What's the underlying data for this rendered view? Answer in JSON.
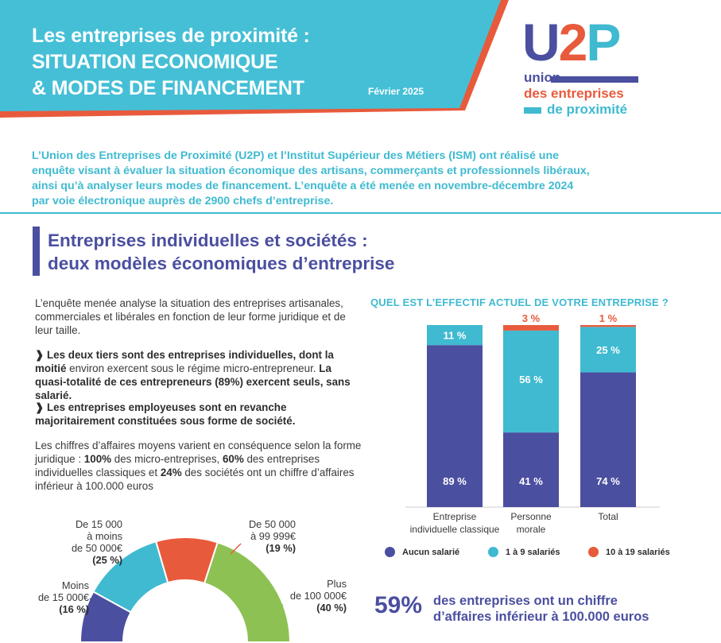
{
  "header": {
    "title_lines": [
      "Les entreprises de proximité :",
      "SITUATION ECONOMIQUE",
      "& MODES DE FINANCEMENT"
    ],
    "date": "Février 2025",
    "colors": {
      "banner": "#45bfd6",
      "accent": "#e85a3c",
      "navy": "#4b4fa0"
    }
  },
  "logo": {
    "mark": [
      "U",
      "2",
      "P"
    ],
    "lines": [
      "union",
      "des entreprises",
      "de proximité"
    ]
  },
  "intro": {
    "lines": [
      "L’Union des Entreprises de Proximité (U2P) et l’Institut Supérieur des Métiers (ISM) ont réalisé une",
      "enquête visant à évaluer la situation économique des artisans, commerçants et professionnels libéraux,",
      "ainsi qu’à analyser leurs modes de financement. L’enquête a été menée en novembre-décembre 2024",
      "par voie électronique auprès de 2900 chefs d’entreprise."
    ]
  },
  "section": {
    "title_lines": [
      "Entreprises individuelles et sociétés :",
      "deux modèles économiques d’entreprise"
    ]
  },
  "body": {
    "p1": "L’enquête menée analyse la situation des entreprises artisanales, commerciales et libérales en fonction de leur forme juridique et de leur taille.",
    "bullet_mark": "❱",
    "b1_strong": "Les deux tiers sont des entreprises individuelles, dont la moitié",
    "b1_rest": " environ exercent sous le régime micro-entrepreneur.",
    "b1_strong2": "La quasi-totalité de ces entrepreneurs (89%) exercent seuls, sans salarié.",
    "b2_strong": "Les entreprises employeuses sont en revanche majoritairement constituées sous forme de société.",
    "p2_a": "Les chiffres d’affaires moyens varient en conséquence selon la forme juridique : ",
    "p2_b": "100%",
    "p2_c": " des micro-entreprises, ",
    "p2_d": "60%",
    "p2_e": " des entreprises individuelles classiques et ",
    "p2_f": "24%",
    "p2_g": " des sociétés ont un chiffre d’affaires inférieur à 100.000 euros"
  },
  "chart_data": [
    {
      "type": "pie",
      "subtype": "half-donut",
      "categories": [
        "Moins de 15 000€",
        "De 15 000 à moins de 50 000€",
        "De 50 000 à 99 999€",
        "Plus de 100 000€"
      ],
      "values": [
        16,
        25,
        19,
        40
      ],
      "value_labels": [
        "(16 %)",
        "(25 %)",
        "(19 %)",
        "(40 %)"
      ],
      "label_lines": [
        [
          "Moins",
          "de 15 000€"
        ],
        [
          "De 15 000",
          "à moins",
          "de 50 000€"
        ],
        [
          "De 50 000",
          "à 99 999€"
        ],
        [
          "Plus",
          "de 100 000€"
        ]
      ],
      "colors": [
        "#4b4fa0",
        "#3fbad0",
        "#e85a3c",
        "#8dc153"
      ]
    },
    {
      "type": "bar",
      "stacked": true,
      "title": "QUEL EST L’EFFECTIF ACTUEL DE VOTRE ENTREPRISE ?",
      "categories": [
        [
          "Entreprise",
          "individuelle classique"
        ],
        [
          "Personne",
          "morale"
        ],
        [
          "Total"
        ]
      ],
      "series": [
        {
          "name": "Aucun salarié",
          "color": "#4b4fa0",
          "values": [
            89,
            41,
            74
          ]
        },
        {
          "name": "1 à 9 salariés",
          "color": "#3fbad0",
          "values": [
            11,
            56,
            25
          ]
        },
        {
          "name": "10 à 19 salariés",
          "color": "#e85a3c",
          "values": [
            0,
            3,
            1
          ]
        }
      ],
      "value_labels": [
        [
          "89 %",
          "41 %",
          "74 %"
        ],
        [
          "11 %",
          "56 %",
          "25 %"
        ],
        [
          "",
          "3 %",
          "1 %"
        ]
      ],
      "ylim": [
        0,
        100
      ]
    }
  ],
  "stat": {
    "value": "59%",
    "lines": [
      "des entreprises ont un chiffre",
      "d’affaires inférieur à 100.000 euros"
    ]
  }
}
